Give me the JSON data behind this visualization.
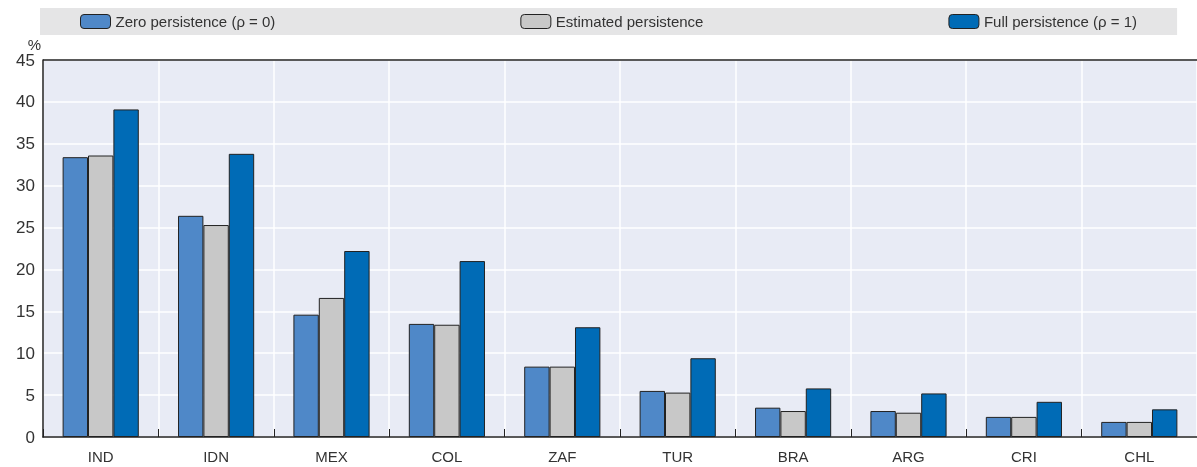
{
  "chart_data": {
    "type": "bar",
    "ylabel": "%",
    "categories": [
      "IND",
      "IDN",
      "MEX",
      "COL",
      "ZAF",
      "TUR",
      "BRA",
      "ARG",
      "CRI",
      "CHL"
    ],
    "series": [
      {
        "name": "Zero persistence (ρ = 0)",
        "color": "#4f88c8",
        "values": [
          33.4,
          26.4,
          14.6,
          13.5,
          8.4,
          5.5,
          3.5,
          3.1,
          2.4,
          1.8
        ]
      },
      {
        "name": "Estimated persistence",
        "color": "#c8c8c8",
        "values": [
          33.6,
          25.3,
          16.6,
          13.4,
          8.4,
          5.3,
          3.1,
          2.9,
          2.4,
          1.8
        ]
      },
      {
        "name": "Full persistence (ρ = 1)",
        "color": "#006bb6",
        "values": [
          39.1,
          33.8,
          22.2,
          21.0,
          13.1,
          9.4,
          5.8,
          5.2,
          4.2,
          3.3
        ]
      }
    ],
    "ylim": [
      0,
      45
    ],
    "yticks": [
      0,
      5,
      10,
      15,
      20,
      25,
      30,
      35,
      40,
      45
    ],
    "grid": true,
    "legend": "top"
  }
}
